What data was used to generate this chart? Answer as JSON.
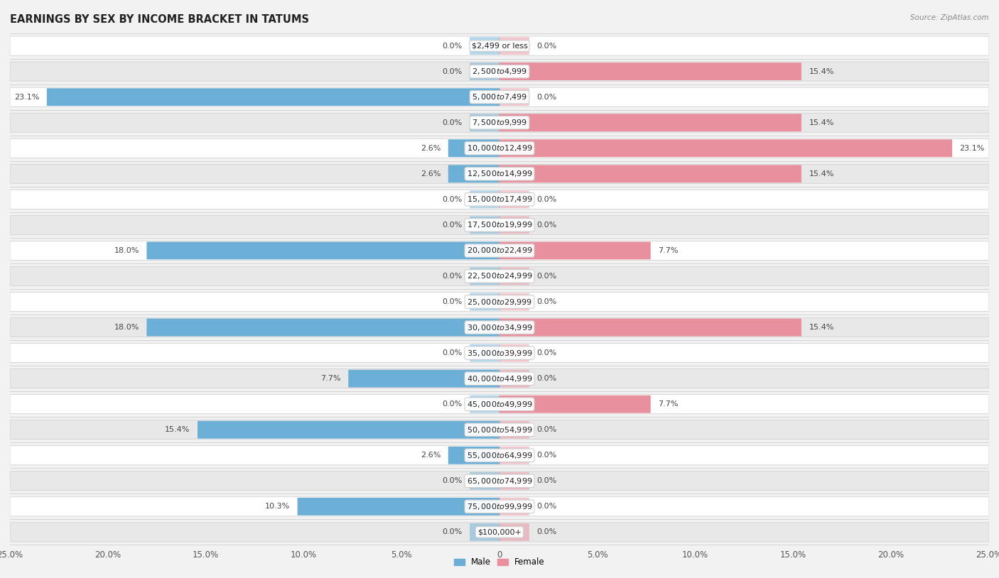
{
  "title": "EARNINGS BY SEX BY INCOME BRACKET IN TATUMS",
  "source": "Source: ZipAtlas.com",
  "categories": [
    "$2,499 or less",
    "$2,500 to $4,999",
    "$5,000 to $7,499",
    "$7,500 to $9,999",
    "$10,000 to $12,499",
    "$12,500 to $14,999",
    "$15,000 to $17,499",
    "$17,500 to $19,999",
    "$20,000 to $22,499",
    "$22,500 to $24,999",
    "$25,000 to $29,999",
    "$30,000 to $34,999",
    "$35,000 to $39,999",
    "$40,000 to $44,999",
    "$45,000 to $49,999",
    "$50,000 to $54,999",
    "$55,000 to $64,999",
    "$65,000 to $74,999",
    "$75,000 to $99,999",
    "$100,000+"
  ],
  "male": [
    0.0,
    0.0,
    23.1,
    0.0,
    2.6,
    2.6,
    0.0,
    0.0,
    18.0,
    0.0,
    0.0,
    18.0,
    0.0,
    7.7,
    0.0,
    15.4,
    2.6,
    0.0,
    10.3,
    0.0
  ],
  "female": [
    0.0,
    15.4,
    0.0,
    15.4,
    23.1,
    15.4,
    0.0,
    0.0,
    7.7,
    0.0,
    0.0,
    15.4,
    0.0,
    0.0,
    7.7,
    0.0,
    0.0,
    0.0,
    0.0,
    0.0
  ],
  "male_color": "#6baed6",
  "female_color": "#e8909e",
  "axis_max": 25.0,
  "background_color": "#f2f2f2",
  "row_color_even": "#ffffff",
  "row_color_odd": "#e8e8e8",
  "title_fontsize": 10.5,
  "label_fontsize": 8.0,
  "tick_fontsize": 8.5,
  "cat_fontsize": 8.0
}
